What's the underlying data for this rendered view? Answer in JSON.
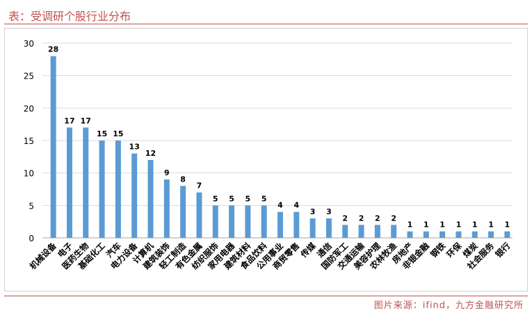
{
  "header": {
    "title": "表：受调研个股行业分布"
  },
  "footer": {
    "source": "图片来源：ifind，九方金融研究所"
  },
  "colors": {
    "accent": "#c0504d",
    "bar": "#5b9bd5",
    "grid": "#d9d9d9"
  },
  "chart_data": {
    "type": "bar",
    "categories": [
      "机械设备",
      "电子",
      "医药生物",
      "基础化工",
      "汽车",
      "电力设备",
      "计算机",
      "建筑装饰",
      "轻工制造",
      "有色金属",
      "纺织服饰",
      "家用电器",
      "建筑材料",
      "食品饮料",
      "公用事业",
      "商贸零售",
      "传媒",
      "通信",
      "国防军工",
      "交通运输",
      "美容护理",
      "农林牧渔",
      "房地产",
      "非银金融",
      "钢铁",
      "环保",
      "煤炭",
      "社会服务",
      "银行"
    ],
    "values": [
      28,
      17,
      17,
      15,
      15,
      13,
      12,
      9,
      8,
      7,
      5,
      5,
      5,
      5,
      4,
      4,
      3,
      3,
      2,
      2,
      2,
      2,
      1,
      1,
      1,
      1,
      1,
      1,
      1
    ],
    "ylim": [
      0,
      30
    ],
    "yticks": [
      0,
      5,
      10,
      15,
      20,
      25,
      30
    ],
    "grid": true,
    "legend": "none"
  }
}
